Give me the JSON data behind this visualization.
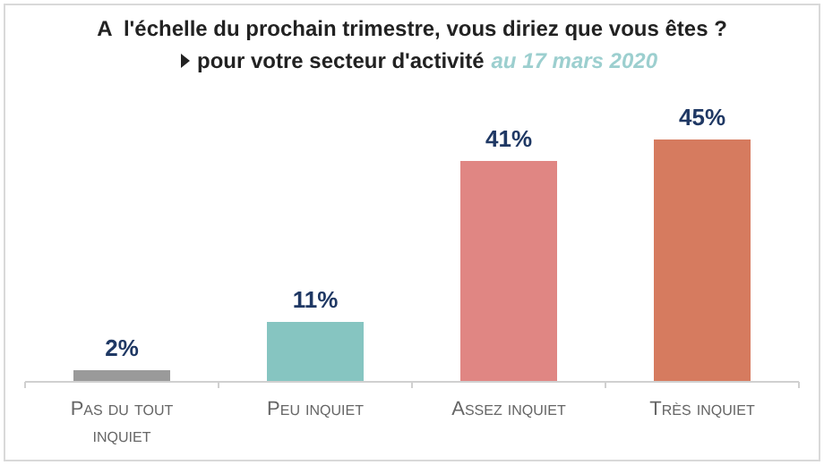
{
  "chart_data": {
    "type": "bar",
    "title": "A  l'échelle du prochain trimestre, vous diriez que vous êtes ?",
    "subtitle": "pour votre secteur d'activité",
    "annotations": [
      "au 17 mars 2020"
    ],
    "categories": [
      "Pas du tout inquiet",
      "Peu inquiet",
      "Assez inquiet",
      "Très inquiet"
    ],
    "values": [
      2,
      11,
      41,
      45
    ],
    "colors": [
      "#9a9a9a",
      "#86c5c1",
      "#e08683",
      "#d67b5f"
    ],
    "value_labels": [
      "2%",
      "11%",
      "41%",
      "45%"
    ]
  }
}
